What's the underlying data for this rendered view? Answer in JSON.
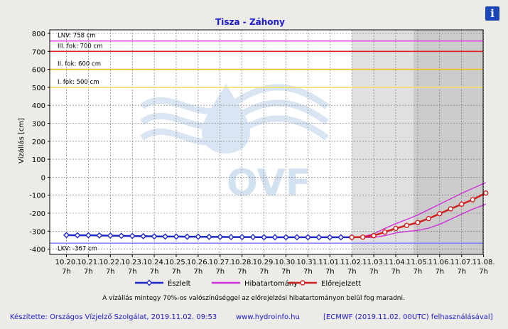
{
  "chart_data": {
    "type": "line",
    "title": "Tisza - Záhony",
    "ylabel": "Vízállás [cm]",
    "ylim": [
      -420,
      820
    ],
    "yticks": [
      800,
      700,
      600,
      500,
      400,
      300,
      200,
      100,
      0,
      -100,
      -200,
      -300,
      -400
    ],
    "x_tick_dates": [
      "10.20.",
      "10.21.",
      "10.22.",
      "10.23.",
      "10.24.",
      "10.25.",
      "10.26.",
      "10.27.",
      "10.28.",
      "10.29.",
      "10.30.",
      "10.31.",
      "11.01.",
      "11.02.",
      "11.03.",
      "11.04.",
      "11.05.",
      "11.06.",
      "11.07.",
      "11.08."
    ],
    "x_tick_hour": "7h",
    "grid": true,
    "levels": [
      {
        "label": "LNV: 758 cm",
        "value": 758,
        "color": "#e040e0"
      },
      {
        "label": "III. fok: 700 cm",
        "value": 700,
        "color": "#e02020"
      },
      {
        "label": "II. fok: 600 cm",
        "value": 600,
        "color": "#e8c020"
      },
      {
        "label": "I. fok: 500 cm",
        "value": 500,
        "color": "#f0e060"
      },
      {
        "label": "LKV: -367 cm",
        "value": -367,
        "color": "#8080ff"
      }
    ],
    "shaded_periods": [
      {
        "from_day": 13,
        "to_day": 15.8,
        "color": "#e0e0e0"
      },
      {
        "from_day": 15.8,
        "to_day": 19.1,
        "color": "#cccccc"
      }
    ],
    "series": [
      {
        "name": "Észlelt",
        "color": "#1e28c8",
        "x_days": [
          0,
          0.5,
          1,
          1.5,
          2,
          2.5,
          3,
          3.5,
          4,
          4.5,
          5,
          5.5,
          6,
          6.5,
          7,
          7.5,
          8,
          8.5,
          9,
          9.5,
          10,
          10.5,
          11,
          11.5,
          12,
          12.5,
          13
        ],
        "values": [
          -322,
          -323,
          -323,
          -324,
          -325,
          -326,
          -327,
          -328,
          -329,
          -330,
          -330,
          -331,
          -331,
          -332,
          -332,
          -333,
          -333,
          -333,
          -334,
          -334,
          -334,
          -334,
          -334,
          -334,
          -334,
          -334,
          -334
        ]
      },
      {
        "name": "Előrejelzett",
        "color": "#d02020",
        "x_days": [
          13,
          13.5,
          14,
          14.5,
          15,
          15.5,
          16,
          16.5,
          17,
          17.5,
          18,
          18.5,
          19.1
        ],
        "values": [
          -334,
          -333,
          -325,
          -305,
          -285,
          -268,
          -252,
          -230,
          -203,
          -176,
          -150,
          -125,
          -88
        ]
      },
      {
        "name": "Hibatartomány",
        "color": "#d030d8",
        "x_days": [
          13,
          13.5,
          14,
          14.5,
          15,
          15.5,
          16,
          16.5,
          17,
          17.5,
          18,
          18.5,
          19.1
        ],
        "upper": [
          -334,
          -330,
          -315,
          -285,
          -258,
          -235,
          -210,
          -180,
          -150,
          -120,
          -90,
          -62,
          -30
        ],
        "lower": [
          -334,
          -335,
          -335,
          -325,
          -310,
          -302,
          -296,
          -283,
          -262,
          -234,
          -205,
          -178,
          -150
        ]
      }
    ],
    "legend": [
      {
        "label": "Észlelt",
        "color": "#1e28c8",
        "marker": "diamond"
      },
      {
        "label": "Hibatartomány",
        "color": "#d030d8",
        "marker": "none"
      },
      {
        "label": "Előrejelzett",
        "color": "#d02020",
        "marker": "circle"
      }
    ],
    "annotation": "A vízállás mintegy 70%-os valószínűséggel az előrejelzési hibatartományon belül fog maradni."
  },
  "footer": {
    "made_by": "Készítette: Országos Vízjelző Szolgálat, 2019.11.02. 09:53",
    "site": "www.hydroinfo.hu",
    "model": "[ECMWF (2019.11.02. 00UTC) felhasználásával]"
  },
  "watermark": "OVF",
  "info_button": "i"
}
